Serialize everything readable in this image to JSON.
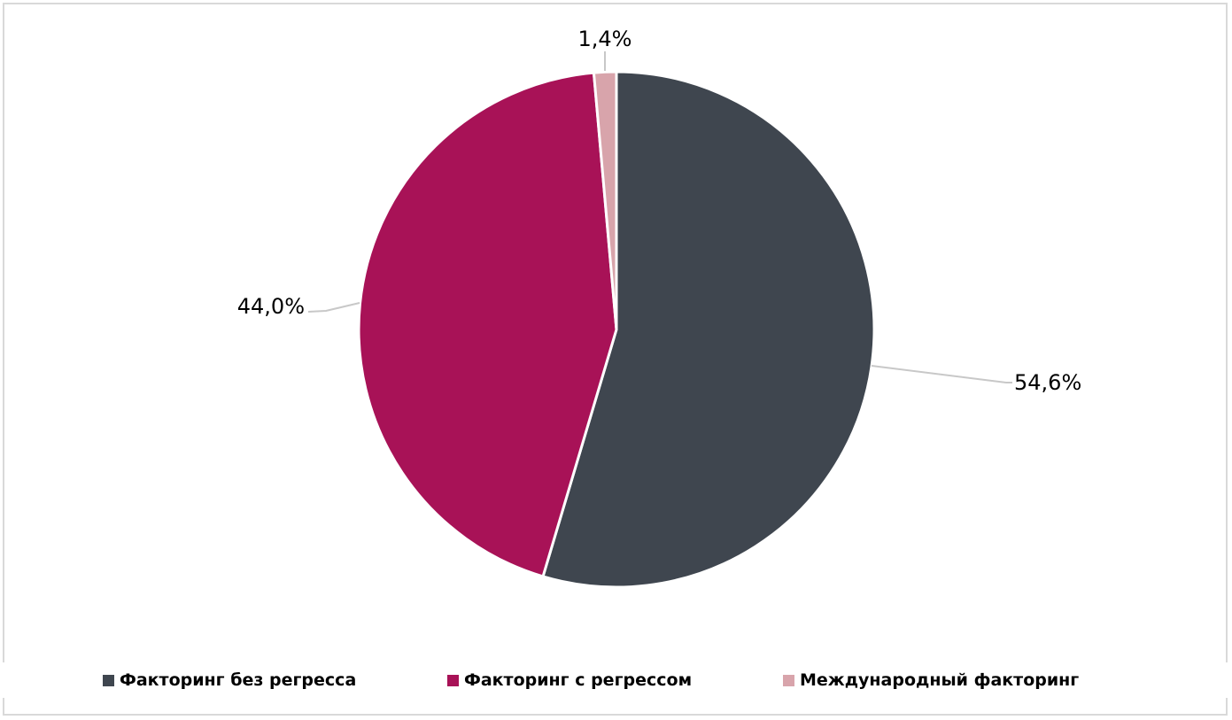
{
  "chart_data": {
    "type": "pie",
    "title": "",
    "start_angle_deg": 0,
    "direction": "clockwise",
    "legend_position": "bottom",
    "slices": [
      {
        "name": "Факторинг без регресса",
        "value": 54.6,
        "label": "54,6%",
        "color": "#3f464f"
      },
      {
        "name": "Факторинг с регрессом",
        "value": 44.0,
        "label": "44,0%",
        "color": "#a81257"
      },
      {
        "name": "Международный факторинг",
        "value": 1.4,
        "label": "1,4%",
        "color": "#d8a4ab"
      }
    ]
  }
}
